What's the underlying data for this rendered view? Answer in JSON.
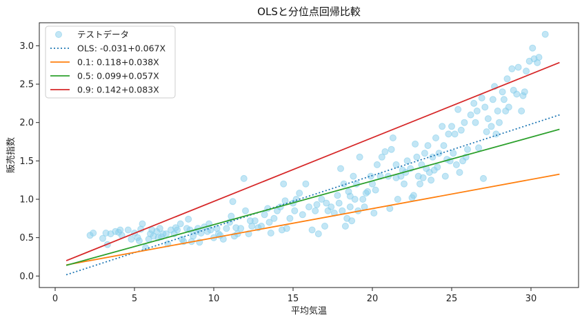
{
  "chart_data": {
    "type": "scatter",
    "title": "OLSと分位点回帰比較",
    "xlabel": "平均気温",
    "ylabel": "販売指数",
    "xlim": [
      -1,
      33
    ],
    "ylim": [
      -0.15,
      3.3
    ],
    "xticks": [
      0,
      5,
      10,
      15,
      20,
      25,
      30
    ],
    "yticks": [
      0.0,
      0.5,
      1.0,
      1.5,
      2.0,
      2.5,
      3.0
    ],
    "grid": false,
    "legend_position": "top-left",
    "scatter": {
      "name": "テストデータ",
      "color": "#87ceeb",
      "points": [
        [
          2.2,
          0.53
        ],
        [
          2.4,
          0.56
        ],
        [
          3.0,
          0.49
        ],
        [
          3.2,
          0.56
        ],
        [
          3.3,
          0.41
        ],
        [
          3.5,
          0.55
        ],
        [
          3.8,
          0.58
        ],
        [
          4.0,
          0.57
        ],
        [
          4.1,
          0.6
        ],
        [
          4.2,
          0.53
        ],
        [
          4.6,
          0.6
        ],
        [
          4.8,
          0.48
        ],
        [
          5.0,
          0.56
        ],
        [
          5.2,
          0.5
        ],
        [
          5.3,
          0.46
        ],
        [
          5.4,
          0.61
        ],
        [
          5.5,
          0.68
        ],
        [
          5.7,
          0.37
        ],
        [
          5.9,
          0.48
        ],
        [
          6.0,
          0.55
        ],
        [
          6.1,
          0.6
        ],
        [
          6.2,
          0.52
        ],
        [
          6.4,
          0.58
        ],
        [
          6.6,
          0.62
        ],
        [
          6.7,
          0.51
        ],
        [
          6.8,
          0.55
        ],
        [
          7.0,
          0.55
        ],
        [
          7.1,
          0.42
        ],
        [
          7.3,
          0.6
        ],
        [
          7.5,
          0.55
        ],
        [
          7.7,
          0.6
        ],
        [
          7.9,
          0.68
        ],
        [
          8.1,
          0.45
        ],
        [
          8.3,
          0.62
        ],
        [
          8.4,
          0.74
        ],
        [
          8.5,
          0.6
        ],
        [
          8.6,
          0.45
        ],
        [
          8.7,
          0.52
        ],
        [
          8.9,
          0.58
        ],
        [
          9.0,
          0.62
        ],
        [
          9.2,
          0.56
        ],
        [
          9.4,
          0.64
        ],
        [
          9.6,
          0.58
        ],
        [
          9.8,
          0.6
        ],
        [
          10.0,
          0.5
        ],
        [
          10.2,
          0.62
        ],
        [
          10.4,
          0.53
        ],
        [
          10.6,
          0.48
        ],
        [
          10.8,
          0.62
        ],
        [
          11.0,
          0.7
        ],
        [
          11.1,
          0.78
        ],
        [
          11.2,
          0.97
        ],
        [
          11.4,
          0.63
        ],
        [
          11.5,
          0.55
        ],
        [
          11.7,
          0.62
        ],
        [
          11.9,
          1.27
        ],
        [
          12.0,
          0.85
        ],
        [
          12.2,
          0.55
        ],
        [
          12.4,
          0.65
        ],
        [
          12.6,
          0.72
        ],
        [
          12.8,
          0.63
        ],
        [
          13.0,
          0.65
        ],
        [
          13.2,
          0.8
        ],
        [
          13.4,
          0.88
        ],
        [
          13.6,
          0.56
        ],
        [
          13.8,
          0.75
        ],
        [
          14.0,
          0.85
        ],
        [
          14.2,
          0.9
        ],
        [
          14.3,
          0.6
        ],
        [
          14.4,
          1.2
        ],
        [
          14.6,
          0.62
        ],
        [
          14.8,
          0.75
        ],
        [
          15.0,
          0.95
        ],
        [
          15.2,
          1.0
        ],
        [
          15.4,
          1.08
        ],
        [
          15.6,
          0.8
        ],
        [
          15.8,
          1.2
        ],
        [
          16.0,
          0.9
        ],
        [
          16.2,
          0.6
        ],
        [
          16.4,
          0.85
        ],
        [
          16.6,
          0.55
        ],
        [
          16.8,
          1.0
        ],
        [
          17.0,
          0.65
        ],
        [
          17.2,
          0.85
        ],
        [
          17.4,
          0.9
        ],
        [
          17.6,
          0.82
        ],
        [
          17.8,
          1.05
        ],
        [
          17.9,
          0.95
        ],
        [
          18.0,
          1.4
        ],
        [
          18.1,
          0.85
        ],
        [
          18.2,
          1.2
        ],
        [
          18.3,
          0.65
        ],
        [
          18.4,
          0.75
        ],
        [
          18.5,
          1.1
        ],
        [
          18.6,
          0.9
        ],
        [
          18.7,
          0.72
        ],
        [
          18.8,
          1.3
        ],
        [
          18.9,
          1.0
        ],
        [
          19.0,
          1.2
        ],
        [
          19.1,
          0.85
        ],
        [
          19.2,
          1.55
        ],
        [
          19.4,
          1.0
        ],
        [
          19.5,
          0.9
        ],
        [
          19.7,
          1.1
        ],
        [
          19.9,
          1.3
        ],
        [
          20.0,
          1.2
        ],
        [
          20.1,
          0.82
        ],
        [
          20.3,
          1.45
        ],
        [
          20.5,
          1.3
        ],
        [
          20.6,
          1.55
        ],
        [
          20.8,
          1.62
        ],
        [
          21.0,
          1.3
        ],
        [
          21.1,
          0.88
        ],
        [
          21.2,
          1.65
        ],
        [
          21.3,
          1.8
        ],
        [
          21.5,
          1.45
        ],
        [
          21.6,
          1.0
        ],
        [
          21.8,
          1.3
        ],
        [
          22.0,
          1.2
        ],
        [
          22.1,
          1.35
        ],
        [
          22.2,
          1.5
        ],
        [
          22.4,
          1.4
        ],
        [
          22.6,
          1.05
        ],
        [
          22.7,
          1.72
        ],
        [
          22.8,
          1.55
        ],
        [
          22.9,
          1.3
        ],
        [
          23.0,
          1.2
        ],
        [
          23.1,
          1.45
        ],
        [
          23.3,
          1.6
        ],
        [
          23.4,
          1.4
        ],
        [
          23.5,
          1.7
        ],
        [
          23.6,
          1.35
        ],
        [
          23.7,
          1.25
        ],
        [
          23.8,
          1.55
        ],
        [
          24.0,
          1.8
        ],
        [
          24.1,
          1.42
        ],
        [
          24.2,
          1.6
        ],
        [
          24.4,
          1.95
        ],
        [
          24.5,
          1.7
        ],
        [
          24.6,
          1.3
        ],
        [
          24.8,
          1.85
        ],
        [
          24.9,
          1.5
        ],
        [
          25.0,
          1.95
        ],
        [
          25.1,
          1.6
        ],
        [
          25.2,
          1.85
        ],
        [
          25.3,
          1.45
        ],
        [
          25.4,
          2.17
        ],
        [
          25.5,
          1.35
        ],
        [
          25.6,
          1.9
        ],
        [
          25.7,
          1.5
        ],
        [
          25.8,
          2.0
        ],
        [
          26.0,
          1.65
        ],
        [
          26.2,
          2.1
        ],
        [
          26.4,
          2.25
        ],
        [
          26.6,
          2.15
        ],
        [
          26.7,
          1.67
        ],
        [
          26.9,
          2.32
        ],
        [
          27.0,
          1.27
        ],
        [
          27.1,
          2.2
        ],
        [
          27.3,
          2.05
        ],
        [
          27.5,
          1.95
        ],
        [
          27.6,
          2.3
        ],
        [
          27.7,
          2.47
        ],
        [
          27.8,
          1.85
        ],
        [
          27.9,
          2.15
        ],
        [
          28.0,
          2.0
        ],
        [
          28.2,
          2.4
        ],
        [
          28.3,
          2.3
        ],
        [
          28.5,
          2.57
        ],
        [
          28.6,
          2.2
        ],
        [
          28.8,
          2.7
        ],
        [
          28.9,
          2.42
        ],
        [
          29.1,
          2.37
        ],
        [
          29.2,
          2.72
        ],
        [
          29.4,
          2.15
        ],
        [
          29.5,
          2.35
        ],
        [
          29.7,
          2.67
        ],
        [
          29.9,
          2.8
        ],
        [
          30.1,
          2.97
        ],
        [
          30.2,
          2.83
        ],
        [
          30.4,
          2.78
        ],
        [
          30.5,
          2.85
        ],
        [
          30.9,
          3.15
        ],
        [
          8.0,
          0.48
        ],
        [
          9.1,
          0.44
        ],
        [
          10.3,
          0.55
        ],
        [
          12.3,
          0.72
        ],
        [
          14.5,
          0.98
        ],
        [
          16.5,
          0.93
        ],
        [
          18.6,
          1.04
        ],
        [
          20.2,
          1.12
        ],
        [
          21.5,
          1.28
        ],
        [
          22.5,
          1.02
        ],
        [
          23.9,
          1.38
        ],
        [
          25.9,
          1.55
        ],
        [
          27.2,
          1.88
        ],
        [
          6.5,
          0.5
        ],
        [
          7.6,
          0.63
        ],
        [
          9.7,
          0.68
        ],
        [
          11.3,
          0.52
        ],
        [
          13.5,
          0.7
        ],
        [
          15.1,
          0.85
        ],
        [
          17.1,
          0.95
        ],
        [
          19.6,
          1.08
        ],
        [
          21.9,
          1.38
        ],
        [
          23.2,
          1.28
        ],
        [
          24.7,
          1.52
        ],
        [
          26.5,
          2.0
        ],
        [
          28.4,
          2.15
        ],
        [
          29.6,
          2.4
        ]
      ]
    },
    "series": [
      {
        "name": "OLS: -0.031+0.067X",
        "intercept": -0.031,
        "slope": 0.067,
        "color": "#1f77b4",
        "style": "dotted",
        "x_range": [
          0.7,
          31.8
        ]
      },
      {
        "name": "0.1: 0.118+0.038X",
        "intercept": 0.118,
        "slope": 0.038,
        "color": "#ff7f0e",
        "style": "solid",
        "x_range": [
          0.7,
          31.8
        ]
      },
      {
        "name": "0.5: 0.099+0.057X",
        "intercept": 0.099,
        "slope": 0.057,
        "color": "#2ca02c",
        "style": "solid",
        "x_range": [
          0.7,
          31.8
        ]
      },
      {
        "name": "0.9: 0.142+0.083X",
        "intercept": 0.142,
        "slope": 0.083,
        "color": "#d62728",
        "style": "solid",
        "x_range": [
          0.7,
          31.8
        ]
      }
    ]
  }
}
